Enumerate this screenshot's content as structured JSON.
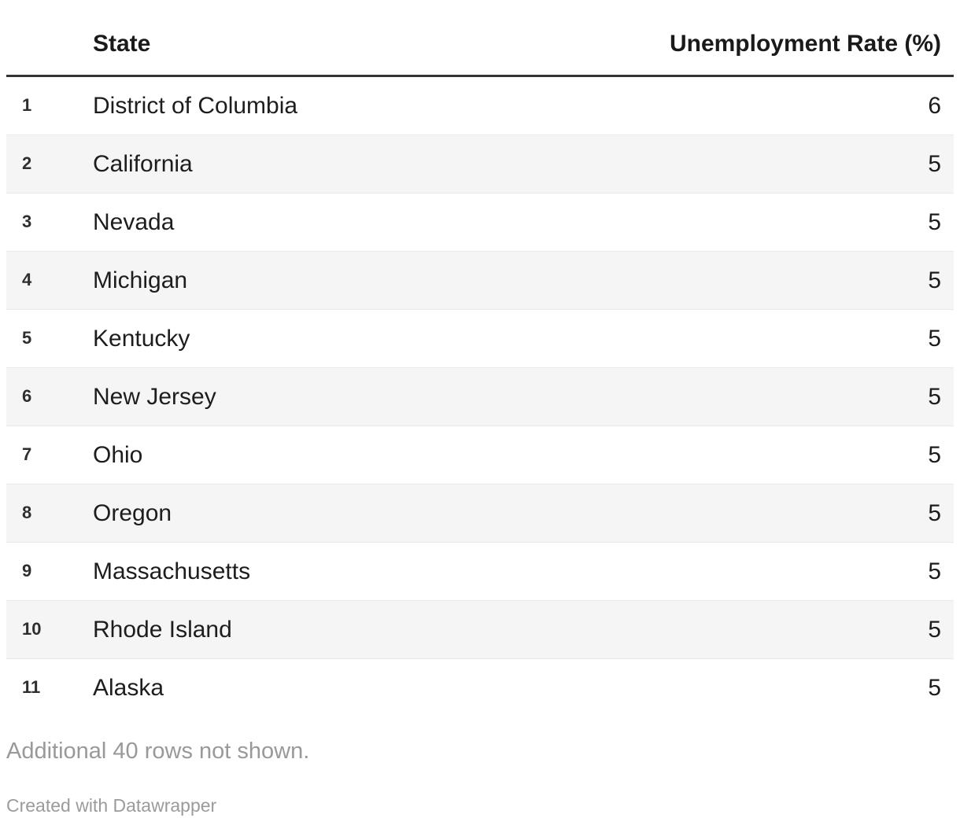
{
  "chart_data": {
    "type": "table",
    "columns": [
      "",
      "State",
      "Unemployment Rate (%)"
    ],
    "rows": [
      [
        "1",
        "District of Columbia",
        "6"
      ],
      [
        "2",
        "California",
        "5"
      ],
      [
        "3",
        "Nevada",
        "5"
      ],
      [
        "4",
        "Michigan",
        "5"
      ],
      [
        "5",
        "Kentucky",
        "5"
      ],
      [
        "6",
        "New Jersey",
        "5"
      ],
      [
        "7",
        "Ohio",
        "5"
      ],
      [
        "8",
        "Oregon",
        "5"
      ],
      [
        "9",
        "Massachusetts",
        "5"
      ],
      [
        "10",
        "Rhode Island",
        "5"
      ],
      [
        "11",
        "Alaska",
        "5"
      ]
    ],
    "note": "Additional 40 rows not shown.",
    "credit": "Created with Datawrapper",
    "layout_hints": {
      "striped_rows": "even",
      "value_alignment": "right",
      "header_rule_color": "#333333",
      "stripe_color": "#f5f5f5",
      "row_border_color": "#e9e9e9",
      "muted_text_color": "#999999"
    }
  }
}
